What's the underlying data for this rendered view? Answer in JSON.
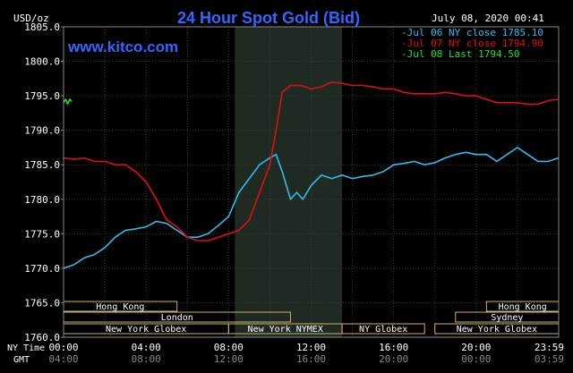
{
  "chart_data": {
    "type": "line",
    "title": "24 Hour Spot Gold (Bid)",
    "site": "www.kitco.com",
    "date_label": "July 08, 2020 00:41",
    "ylabel": "USD/oz",
    "ylim": [
      1760,
      1805
    ],
    "y_ticks": [
      "1760.0",
      "1765.0",
      "1770.0",
      "1775.0",
      "1780.0",
      "1785.0",
      "1790.0",
      "1795.0",
      "1800.0",
      "1805.0"
    ],
    "x_ticks_ny": [
      "00:00",
      "04:00",
      "08:00",
      "12:00",
      "16:00",
      "20:00",
      "23:59"
    ],
    "x_ticks_gmt": [
      "04:00",
      "08:00",
      "12:00",
      "16:00",
      "20:00",
      "00:00",
      "03:59"
    ],
    "x_label_ny": "NY Time",
    "x_label_gmt": "GMT",
    "legend_placement": "top-right",
    "grid": true,
    "series": [
      {
        "name": "Jul 06 NY close 1785.10",
        "color": "#33bbee",
        "points": [
          [
            0,
            1770.0
          ],
          [
            0.5,
            1770.5
          ],
          [
            1,
            1771.5
          ],
          [
            1.5,
            1772
          ],
          [
            2,
            1773
          ],
          [
            2.5,
            1774.5
          ],
          [
            3,
            1775.5
          ],
          [
            3.5,
            1775.7
          ],
          [
            4,
            1776
          ],
          [
            4.5,
            1776.8
          ],
          [
            5,
            1776.5
          ],
          [
            5.5,
            1775.5
          ],
          [
            6,
            1774.5
          ],
          [
            6.5,
            1774.5
          ],
          [
            7,
            1775
          ],
          [
            7.5,
            1776.2
          ],
          [
            8,
            1777.5
          ],
          [
            8.5,
            1781
          ],
          [
            9,
            1783
          ],
          [
            9.5,
            1785
          ],
          [
            10,
            1786
          ],
          [
            10.3,
            1786.5
          ],
          [
            10.6,
            1784
          ],
          [
            11,
            1780
          ],
          [
            11.3,
            1781
          ],
          [
            11.6,
            1780
          ],
          [
            12,
            1782
          ],
          [
            12.5,
            1783.5
          ],
          [
            13,
            1783
          ],
          [
            13.5,
            1783.5
          ],
          [
            14,
            1783
          ],
          [
            14.5,
            1783.3
          ],
          [
            15,
            1783.5
          ],
          [
            15.5,
            1784
          ],
          [
            16,
            1785
          ],
          [
            16.5,
            1785.2
          ],
          [
            17,
            1785.5
          ],
          [
            17.5,
            1785
          ],
          [
            18,
            1785.3
          ],
          [
            18.5,
            1786
          ],
          [
            19,
            1786.5
          ],
          [
            19.5,
            1786.8
          ],
          [
            20,
            1786.5
          ],
          [
            20.5,
            1786.5
          ],
          [
            21,
            1785.5
          ],
          [
            21.5,
            1786.5
          ],
          [
            22,
            1787.5
          ],
          [
            22.5,
            1786.5
          ],
          [
            23,
            1785.5
          ],
          [
            23.5,
            1785.5
          ],
          [
            24,
            1786
          ]
        ]
      },
      {
        "name": "Jul 07 NY close 1794.90",
        "color": "#dd1111",
        "points": [
          [
            0,
            1786
          ],
          [
            0.5,
            1785.8
          ],
          [
            1,
            1786
          ],
          [
            1.5,
            1785.5
          ],
          [
            2,
            1785.5
          ],
          [
            2.5,
            1785
          ],
          [
            3,
            1785
          ],
          [
            3.5,
            1784
          ],
          [
            4,
            1782.5
          ],
          [
            4.5,
            1780
          ],
          [
            5,
            1777
          ],
          [
            5.5,
            1776
          ],
          [
            6,
            1774.5
          ],
          [
            6.5,
            1774
          ],
          [
            7,
            1774
          ],
          [
            7.5,
            1774.5
          ],
          [
            8,
            1775
          ],
          [
            8.5,
            1775.5
          ],
          [
            9,
            1777
          ],
          [
            9.5,
            1781
          ],
          [
            10,
            1785
          ],
          [
            10.3,
            1790
          ],
          [
            10.6,
            1795.5
          ],
          [
            11,
            1796.5
          ],
          [
            11.5,
            1796.5
          ],
          [
            12,
            1796
          ],
          [
            12.5,
            1796.3
          ],
          [
            13,
            1797
          ],
          [
            13.5,
            1796.8
          ],
          [
            14,
            1796.5
          ],
          [
            14.5,
            1796.5
          ],
          [
            15,
            1796.3
          ],
          [
            15.5,
            1796
          ],
          [
            16,
            1796
          ],
          [
            16.5,
            1795.5
          ],
          [
            17,
            1795.3
          ],
          [
            17.5,
            1795.3
          ],
          [
            18,
            1795.3
          ],
          [
            18.5,
            1795.5
          ],
          [
            19,
            1795.3
          ],
          [
            19.5,
            1795
          ],
          [
            20,
            1795
          ],
          [
            20.5,
            1794.5
          ],
          [
            21,
            1794
          ],
          [
            21.5,
            1794
          ],
          [
            22,
            1794
          ],
          [
            22.5,
            1793.8
          ],
          [
            23,
            1793.8
          ],
          [
            23.5,
            1794.3
          ],
          [
            24,
            1794.5
          ]
        ]
      },
      {
        "name": "Jul 08 Last 1794.50",
        "color": "#22dd22",
        "points": [
          [
            0,
            1794
          ],
          [
            0.1,
            1794.5
          ],
          [
            0.2,
            1793.8
          ],
          [
            0.3,
            1794.5
          ],
          [
            0.4,
            1794.2
          ]
        ]
      }
    ],
    "sessions": [
      {
        "label": "Hong Kong",
        "row": 0,
        "start": 0,
        "end": 5.5
      },
      {
        "label": "London",
        "row": 1,
        "start": 0,
        "end": 11
      },
      {
        "label": "New York Globex",
        "row": 2,
        "start": 0,
        "end": 8
      },
      {
        "label": "New York NYMEX",
        "row": 2,
        "start": 8,
        "end": 13.5
      },
      {
        "label": "NY Globex",
        "row": 2,
        "start": 13.5,
        "end": 17.5
      },
      {
        "label": "Hong Kong",
        "row": 0,
        "start": 20.5,
        "end": 24
      },
      {
        "label": "Sydney",
        "row": 1,
        "start": 19,
        "end": 24
      },
      {
        "label": "New York Globex",
        "row": 2,
        "start": 18,
        "end": 24
      }
    ],
    "nymex_band": {
      "start": 8.3,
      "end": 13.5
    }
  }
}
